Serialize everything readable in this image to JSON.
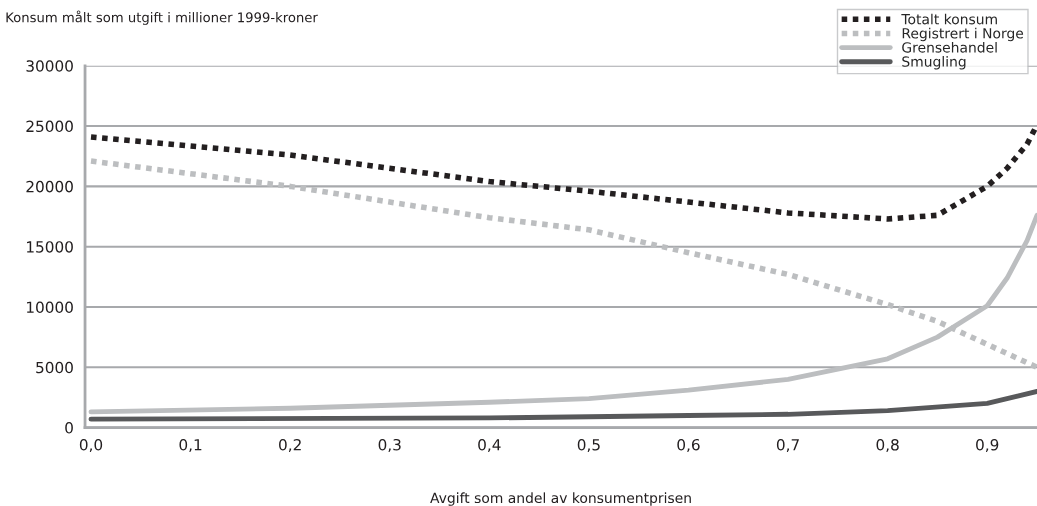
{
  "chart_data": {
    "type": "line",
    "ylabel": "Konsum målt som utgift i millioner 1999-kroner",
    "xlabel": "Avgift som andel av konsumentprisen",
    "series": [
      {
        "name": "Totalt konsum",
        "color": "#231f20",
        "line_style": "dotted",
        "x": [
          0,
          0.2,
          0.4,
          0.5,
          0.6,
          0.7,
          0.8,
          0.85,
          0.9,
          0.92,
          0.94,
          0.95
        ],
        "values": [
          24100,
          22600,
          20400,
          19600,
          18700,
          17800,
          17300,
          17600,
          20000,
          21500,
          23500,
          25100
        ]
      },
      {
        "name": "Registrert i Norge",
        "color": "#bcbec0",
        "line_style": "dotted",
        "x": [
          0,
          0.2,
          0.4,
          0.5,
          0.6,
          0.7,
          0.8,
          0.85,
          0.9,
          0.95
        ],
        "values": [
          22100,
          20000,
          17400,
          16400,
          14500,
          12700,
          10200,
          8800,
          6900,
          5000
        ]
      },
      {
        "name": "Grensehandel",
        "color": "#bcbec0",
        "line_style": "solid",
        "x": [
          0,
          0.2,
          0.4,
          0.5,
          0.6,
          0.7,
          0.8,
          0.85,
          0.9,
          0.92,
          0.94,
          0.95
        ],
        "values": [
          1300,
          1600,
          2100,
          2400,
          3100,
          4000,
          5700,
          7500,
          10100,
          12400,
          15500,
          17600
        ]
      },
      {
        "name": "Smugling",
        "color": "#58595b",
        "line_style": "solid",
        "x": [
          0,
          0.4,
          0.5,
          0.6,
          0.7,
          0.8,
          0.9,
          0.95
        ],
        "values": [
          700,
          800,
          900,
          1000,
          1100,
          1400,
          2000,
          3000
        ]
      }
    ],
    "xlim": [
      -0.006,
      0.95
    ],
    "xticks": [
      {
        "value": 0,
        "label": "0,0"
      },
      {
        "value": 0.1,
        "label": "0,1"
      },
      {
        "value": 0.2,
        "label": "0,2"
      },
      {
        "value": 0.3,
        "label": "0,3"
      },
      {
        "value": 0.4,
        "label": "0,4"
      },
      {
        "value": 0.5,
        "label": "0,5"
      },
      {
        "value": 0.6,
        "label": "0,6"
      },
      {
        "value": 0.7,
        "label": "0,7"
      },
      {
        "value": 0.8,
        "label": "0,8"
      },
      {
        "value": 0.9,
        "label": "0,9"
      }
    ],
    "ylim": [
      0,
      30000
    ],
    "yticks": [
      0,
      5000,
      10000,
      15000,
      20000,
      25000,
      30000
    ],
    "grid": "y",
    "legend": "top right"
  }
}
